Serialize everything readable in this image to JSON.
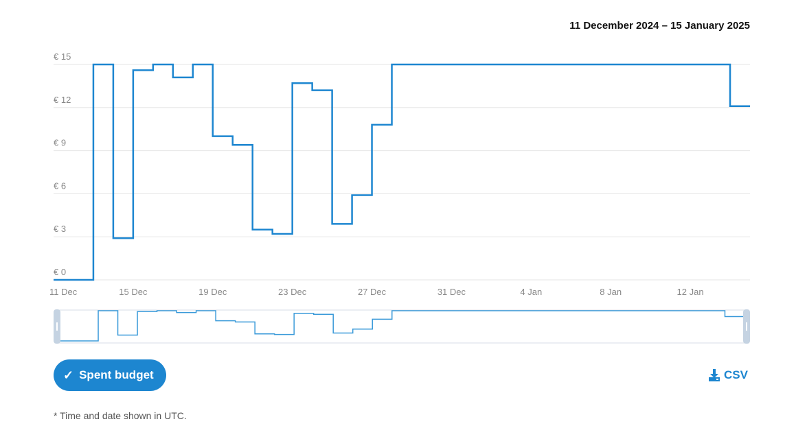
{
  "header": {
    "date_range": "11 December 2024 – 15 January 2025"
  },
  "colors": {
    "series": "#1d86d0",
    "navigator_series": "#3a9ad9",
    "navigator_handle": "#c5d3e2"
  },
  "chart_data": {
    "type": "line",
    "step": true,
    "y_ticks": [
      "€ 0",
      "€ 3",
      "€ 6",
      "€ 9",
      "€ 12",
      "€ 15"
    ],
    "y_tick_values": [
      0,
      3,
      6,
      9,
      12,
      15
    ],
    "ylim": [
      0,
      15
    ],
    "x_tick_labels": [
      "11 Dec",
      "15 Dec",
      "19 Dec",
      "23 Dec",
      "27 Dec",
      "31 Dec",
      "4 Jan",
      "8 Jan",
      "12 Jan"
    ],
    "x_tick_dates": [
      "2024-12-11",
      "2024-12-15",
      "2024-12-19",
      "2024-12-23",
      "2024-12-27",
      "2024-12-31",
      "2025-01-04",
      "2025-01-08",
      "2025-01-12"
    ],
    "xlim": [
      "2024-12-11",
      "2025-01-15"
    ],
    "grid": true,
    "series": [
      {
        "currency": "€",
        "points": [
          [
            "2024-12-11",
            0
          ],
          [
            "2024-12-13",
            15
          ],
          [
            "2024-12-14",
            2.9
          ],
          [
            "2024-12-15",
            14.6
          ],
          [
            "2024-12-16",
            15
          ],
          [
            "2024-12-17",
            14.1
          ],
          [
            "2024-12-18",
            15
          ],
          [
            "2024-12-19",
            10.0
          ],
          [
            "2024-12-20",
            9.4
          ],
          [
            "2024-12-21",
            3.5
          ],
          [
            "2024-12-22",
            3.2
          ],
          [
            "2024-12-23",
            13.7
          ],
          [
            "2024-12-24",
            13.2
          ],
          [
            "2024-12-25",
            3.9
          ],
          [
            "2024-12-26",
            5.9
          ],
          [
            "2024-12-27",
            10.8
          ],
          [
            "2024-12-28",
            15
          ],
          [
            "2025-01-14",
            12.1
          ],
          [
            "2025-01-15",
            12.1
          ]
        ]
      }
    ]
  },
  "controls": {
    "spent_budget_label": "Spent budget",
    "csv_label": "CSV"
  },
  "footnote": "* Time and date shown in UTC."
}
